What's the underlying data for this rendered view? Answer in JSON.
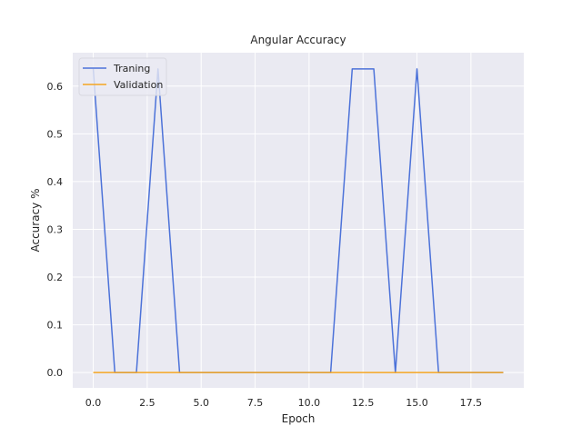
{
  "chart_data": {
    "type": "line",
    "title": "Angular Accuracy",
    "xlabel": "Epoch",
    "ylabel": "Accuracy %",
    "xlim": [
      -0.95,
      19.95
    ],
    "ylim": [
      -0.032,
      0.67
    ],
    "x_ticks": [
      0,
      2.5,
      5,
      7.5,
      10,
      12.5,
      15,
      17.5
    ],
    "x_tick_labels": [
      "0.0",
      "2.5",
      "5.0",
      "7.5",
      "10.0",
      "12.5",
      "15.0",
      "17.5"
    ],
    "y_ticks": [
      0,
      0.1,
      0.2,
      0.3,
      0.4,
      0.5,
      0.6
    ],
    "y_tick_labels": [
      "0.0",
      "0.1",
      "0.2",
      "0.3",
      "0.4",
      "0.5",
      "0.6"
    ],
    "grid": true,
    "legend_position": "top-left",
    "background_color": "#eaeaf2",
    "grid_color": "#ffffff",
    "x": [
      0,
      1,
      2,
      3,
      4,
      5,
      6,
      7,
      8,
      9,
      10,
      11,
      12,
      13,
      14,
      15,
      16,
      17,
      18,
      19
    ],
    "series": [
      {
        "name": "Traning",
        "color": "#4c72d9",
        "values": [
          0.636,
          0,
          0,
          0.636,
          0,
          0,
          0,
          0,
          0,
          0,
          0,
          0,
          0.636,
          0.636,
          0,
          0.636,
          0,
          0,
          0,
          0
        ]
      },
      {
        "name": "Validation",
        "color": "#f5a623",
        "values": [
          0,
          0,
          0,
          0,
          0,
          0,
          0,
          0,
          0,
          0,
          0,
          0,
          0,
          0,
          0,
          0,
          0,
          0,
          0,
          0
        ]
      }
    ]
  }
}
